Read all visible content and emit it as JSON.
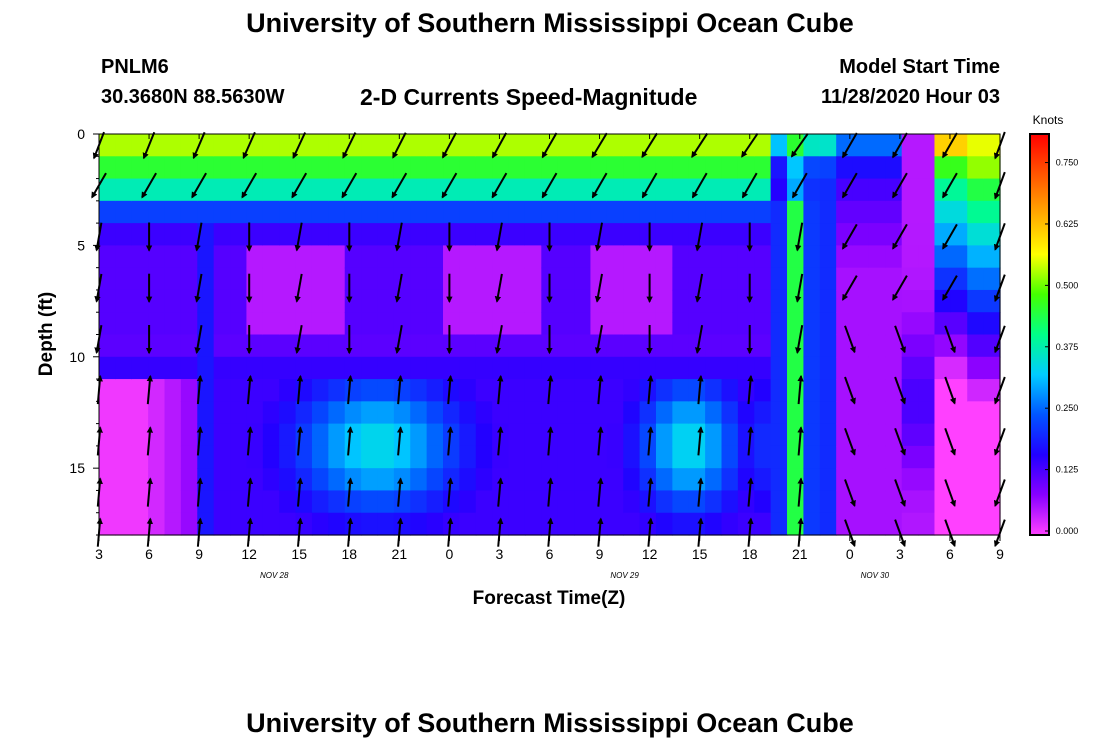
{
  "header": {
    "title": "University of Southern Mississippi Ocean Cube",
    "station_id": "PNLM6",
    "station_location": "30.3680N 88.5630W",
    "plot_title": "2-D Currents Speed-Magnitude",
    "model_start_label": "Model Start Time",
    "model_start_value": "11/28/2020 Hour 03"
  },
  "footer": {
    "title": "University of Southern Mississippi Ocean Cube"
  },
  "chart_data": {
    "type": "heatmap",
    "xlabel": "Forecast Time(Z)",
    "ylabel": "Depth (ft)",
    "x_tick_labels": [
      "3",
      "6",
      "9",
      "12",
      "15",
      "18",
      "21",
      "0",
      "3",
      "6",
      "9",
      "12",
      "15",
      "18",
      "21",
      "0",
      "3",
      "6",
      "9"
    ],
    "x_date_labels": [
      {
        "label": "NOV 28",
        "at_tick": 3.5
      },
      {
        "label": "NOV 29",
        "at_tick": 10.5
      },
      {
        "label": "NOV 30",
        "at_tick": 15.5
      }
    ],
    "y_ticks": [
      0,
      5,
      10,
      15
    ],
    "ylim": [
      0,
      18
    ],
    "y_inverted": true,
    "colorbar": {
      "title": "Knots",
      "ticks": [
        "0.000",
        "0.125",
        "0.250",
        "0.375",
        "0.500",
        "0.625",
        "0.750"
      ],
      "range": [
        0,
        0.8
      ],
      "colors": [
        "#ff40ff",
        "#8800ff",
        "#2200ff",
        "#0055ff",
        "#00ccff",
        "#00ff88",
        "#44ff00",
        "#ffff00",
        "#ffaa00",
        "#ff5500",
        "#ff0000"
      ]
    },
    "x_times": [
      3,
      4,
      5,
      6,
      7,
      8,
      9,
      10,
      11,
      12,
      13,
      14,
      15,
      16,
      17,
      18,
      19,
      20,
      21,
      22,
      23,
      24,
      25,
      26,
      27,
      28,
      29,
      30,
      31,
      32,
      33,
      34,
      35,
      36,
      37,
      38,
      39,
      40,
      41,
      42,
      43,
      44,
      45,
      46,
      47,
      48,
      49,
      50,
      51,
      52,
      53,
      54,
      55,
      56,
      57
    ],
    "y_depths": [
      0,
      1,
      2,
      3,
      4,
      5,
      6,
      7,
      8,
      9,
      10,
      11,
      12,
      13,
      14,
      15,
      16,
      17
    ],
    "vector_times": [
      3,
      6,
      9,
      12,
      15,
      18,
      21,
      24,
      27,
      30,
      33,
      36,
      39,
      42,
      45,
      48,
      51,
      54,
      57
    ],
    "vector_depths": [
      0.5,
      2.3,
      4.6,
      6.9,
      9.2,
      11.5,
      13.8,
      16.1,
      17.9
    ]
  }
}
